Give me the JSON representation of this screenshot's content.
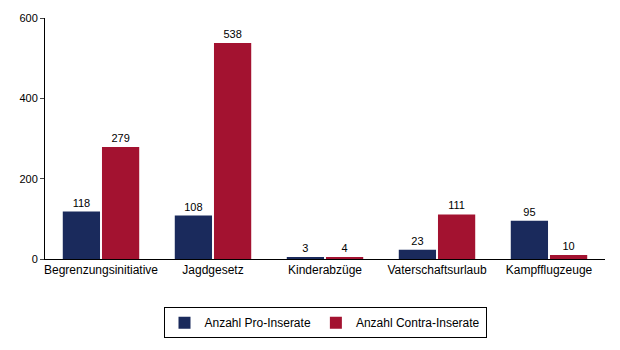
{
  "chart_data": {
    "type": "bar",
    "categories": [
      "Begrenzungsinitiative",
      "Jagdgesetz",
      "Kinderabzüge",
      "Vaterschaftsurlaub",
      "Kampfflugzeuge"
    ],
    "series": [
      {
        "name": "Anzahl Pro-Inserate",
        "color": "#1a2a5c",
        "values": [
          118,
          108,
          3,
          23,
          95
        ]
      },
      {
        "name": "Anzahl Contra-Inserate",
        "color": "#a31230",
        "values": [
          279,
          538,
          4,
          111,
          10
        ]
      }
    ],
    "ylim": [
      0,
      600
    ],
    "yticks": [
      0,
      200,
      400,
      600
    ],
    "grid": false,
    "legend": "bottom",
    "data_labels": true
  }
}
